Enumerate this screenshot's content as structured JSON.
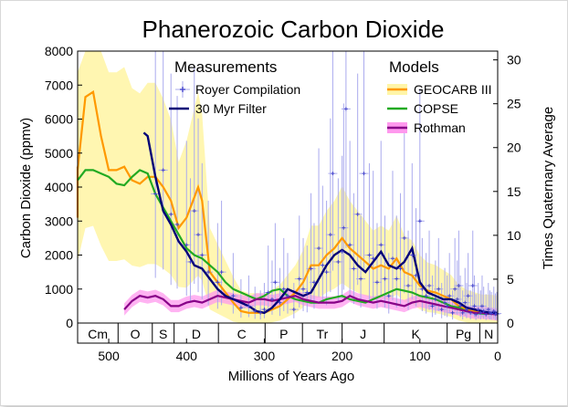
{
  "chart_data": {
    "type": "line",
    "title": "Phanerozoic Carbon Dioxide",
    "xlabel": "Millions of Years Ago",
    "ylabel": "Carbon Dioxide (ppmv)",
    "ylabel_right": "Times Quaternary Average",
    "xlim": [
      540,
      0
    ],
    "ylim": [
      0,
      8000
    ],
    "ylim_right": [
      0,
      31
    ],
    "x_ticks": [
      500,
      400,
      300,
      200,
      100,
      0
    ],
    "y_ticks": [
      0,
      1000,
      2000,
      3000,
      4000,
      5000,
      6000,
      7000,
      8000
    ],
    "y_ticks_right": [
      0,
      5,
      10,
      15,
      20,
      25,
      30
    ],
    "periods": [
      {
        "label": "Cm",
        "start": 542,
        "end": 488
      },
      {
        "label": "O",
        "start": 488,
        "end": 444
      },
      {
        "label": "S",
        "start": 444,
        "end": 416
      },
      {
        "label": "D",
        "start": 416,
        "end": 359
      },
      {
        "label": "C",
        "start": 359,
        "end": 299
      },
      {
        "label": "P",
        "start": 299,
        "end": 251
      },
      {
        "label": "Tr",
        "start": 251,
        "end": 200
      },
      {
        "label": "J",
        "start": 200,
        "end": 146
      },
      {
        "label": "K",
        "start": 146,
        "end": 65
      },
      {
        "label": "Pg",
        "start": 65,
        "end": 23
      },
      {
        "label": "N",
        "start": 23,
        "end": 0
      }
    ],
    "legend": {
      "measurements_title": "Measurements",
      "models_title": "Models",
      "measurements": [
        "Royer Compilation",
        "30 Myr Filter"
      ],
      "models": [
        "GEOCARB III",
        "COPSE",
        "Rothman"
      ]
    },
    "colors": {
      "geocarb": "#ff9900",
      "geocarb_band": "#fff5a8",
      "copse": "#22aa22",
      "rothman": "#880088",
      "rothman_band": "#ff99ee",
      "royer": "#4444cc",
      "royer_error": "#aaaaee",
      "filter": "#000077"
    },
    "series": [
      {
        "name": "GEOCARB III",
        "x": [
          570,
          550,
          540,
          530,
          520,
          510,
          500,
          490,
          480,
          470,
          460,
          450,
          440,
          430,
          420,
          410,
          400,
          390,
          385,
          380,
          370,
          360,
          350,
          340,
          330,
          320,
          310,
          300,
          290,
          280,
          270,
          260,
          250,
          240,
          230,
          220,
          210,
          200,
          190,
          180,
          170,
          160,
          150,
          140,
          130,
          120,
          110,
          100,
          90,
          80,
          70,
          60,
          50,
          40,
          30,
          20,
          10,
          0
        ],
        "y": [
          3100,
          4600,
          4500,
          6650,
          6800,
          5500,
          4500,
          4500,
          4600,
          4200,
          4100,
          4300,
          4300,
          4000,
          3600,
          2800,
          3100,
          3700,
          4000,
          3600,
          1500,
          1200,
          900,
          600,
          350,
          300,
          300,
          300,
          400,
          500,
          700,
          900,
          1200,
          1700,
          1700,
          2000,
          2200,
          2500,
          2200,
          2000,
          1800,
          1600,
          1700,
          1600,
          1900,
          1500,
          1400,
          1100,
          950,
          900,
          800,
          700,
          500,
          400,
          350,
          300,
          300,
          280
        ]
      },
      {
        "name": "COPSE",
        "x": [
          550,
          530,
          520,
          510,
          500,
          490,
          480,
          470,
          460,
          450,
          440,
          430,
          420,
          410,
          400,
          390,
          380,
          370,
          360,
          350,
          340,
          330,
          320,
          310,
          300,
          290,
          280,
          270,
          260,
          250,
          240,
          230,
          220,
          210,
          200,
          190,
          180,
          170,
          160,
          150,
          140,
          130,
          120,
          110,
          100,
          90,
          80,
          70,
          60,
          50,
          40,
          30,
          20,
          10,
          0
        ],
        "y": [
          4200,
          4500,
          4500,
          4400,
          4300,
          4100,
          4050,
          4300,
          4500,
          4400,
          3800,
          3400,
          3000,
          2600,
          2200,
          2000,
          1900,
          1700,
          1500,
          1200,
          1000,
          900,
          800,
          700,
          800,
          950,
          1000,
          800,
          700,
          650,
          600,
          600,
          700,
          750,
          800,
          700,
          650,
          600,
          700,
          800,
          900,
          1000,
          950,
          900,
          800,
          750,
          700,
          600,
          500,
          450,
          350,
          300,
          280,
          270,
          260
        ]
      },
      {
        "name": "Rothman",
        "x": [
          480,
          470,
          460,
          450,
          440,
          430,
          420,
          410,
          400,
          390,
          380,
          370,
          360,
          350,
          340,
          330,
          320,
          310,
          300,
          290,
          280,
          270,
          260,
          250,
          240,
          230,
          220,
          210,
          200,
          190,
          180,
          170,
          160,
          150,
          140,
          130,
          120,
          110,
          100,
          90,
          80,
          70,
          60,
          50,
          40,
          30,
          20,
          10,
          0
        ],
        "y": [
          400,
          650,
          800,
          750,
          800,
          700,
          500,
          500,
          600,
          650,
          600,
          700,
          800,
          750,
          700,
          650,
          600,
          700,
          700,
          650,
          700,
          750,
          800,
          700,
          650,
          600,
          600,
          600,
          650,
          800,
          700,
          650,
          600,
          650,
          600,
          550,
          500,
          600,
          650,
          600,
          550,
          500,
          450,
          400,
          350,
          300,
          300,
          280,
          250
        ]
      },
      {
        "name": "30 Myr Filter",
        "x": [
          455,
          450,
          440,
          430,
          420,
          410,
          400,
          390,
          380,
          370,
          360,
          350,
          340,
          330,
          320,
          310,
          300,
          290,
          280,
          270,
          260,
          250,
          240,
          230,
          220,
          210,
          200,
          190,
          180,
          170,
          160,
          150,
          140,
          130,
          120,
          110,
          100,
          90,
          80,
          70,
          60,
          50,
          40,
          30,
          20,
          10,
          0
        ],
        "y": [
          5600,
          5500,
          4300,
          3300,
          2900,
          2400,
          2100,
          1700,
          1600,
          1300,
          1000,
          800,
          700,
          600,
          500,
          350,
          300,
          450,
          700,
          1000,
          900,
          800,
          900,
          1300,
          1700,
          2000,
          2150,
          2000,
          1700,
          1500,
          1800,
          2100,
          1700,
          1600,
          1800,
          2200,
          1200,
          900,
          800,
          700,
          700,
          600,
          450,
          400,
          350,
          300,
          300
        ]
      }
    ],
    "royer_points": [
      {
        "x": 440,
        "y": 3800
      },
      {
        "x": 430,
        "y": 4500
      },
      {
        "x": 420,
        "y": 3200
      },
      {
        "x": 412,
        "y": 2900
      },
      {
        "x": 400,
        "y": 2300
      },
      {
        "x": 395,
        "y": 1800
      },
      {
        "x": 390,
        "y": 3300
      },
      {
        "x": 385,
        "y": 2600
      },
      {
        "x": 380,
        "y": 2000
      },
      {
        "x": 372,
        "y": 1500
      },
      {
        "x": 360,
        "y": 1200
      },
      {
        "x": 355,
        "y": 1500
      },
      {
        "x": 340,
        "y": 800
      },
      {
        "x": 330,
        "y": 450
      },
      {
        "x": 320,
        "y": 500
      },
      {
        "x": 312,
        "y": 350
      },
      {
        "x": 305,
        "y": 300
      },
      {
        "x": 300,
        "y": 400
      },
      {
        "x": 295,
        "y": 900
      },
      {
        "x": 290,
        "y": 700
      },
      {
        "x": 286,
        "y": 1200
      },
      {
        "x": 280,
        "y": 600
      },
      {
        "x": 275,
        "y": 1000
      },
      {
        "x": 270,
        "y": 800
      },
      {
        "x": 262,
        "y": 400
      },
      {
        "x": 255,
        "y": 1300
      },
      {
        "x": 250,
        "y": 1000
      },
      {
        "x": 245,
        "y": 900
      },
      {
        "x": 240,
        "y": 1600
      },
      {
        "x": 236,
        "y": 1200
      },
      {
        "x": 230,
        "y": 2200
      },
      {
        "x": 225,
        "y": 1700
      },
      {
        "x": 220,
        "y": 1500
      },
      {
        "x": 215,
        "y": 2600
      },
      {
        "x": 212,
        "y": 4400
      },
      {
        "x": 205,
        "y": 1800
      },
      {
        "x": 200,
        "y": 2100
      },
      {
        "x": 198,
        "y": 2800
      },
      {
        "x": 195,
        "y": 6300
      },
      {
        "x": 190,
        "y": 2300
      },
      {
        "x": 185,
        "y": 1600
      },
      {
        "x": 180,
        "y": 3200
      },
      {
        "x": 176,
        "y": 1300
      },
      {
        "x": 172,
        "y": 4400
      },
      {
        "x": 165,
        "y": 2000
      },
      {
        "x": 160,
        "y": 1900
      },
      {
        "x": 155,
        "y": 1200
      },
      {
        "x": 150,
        "y": 2300
      },
      {
        "x": 145,
        "y": 1300
      },
      {
        "x": 140,
        "y": 800
      },
      {
        "x": 135,
        "y": 1900
      },
      {
        "x": 130,
        "y": 1300
      },
      {
        "x": 125,
        "y": 1600
      },
      {
        "x": 120,
        "y": 2500
      },
      {
        "x": 115,
        "y": 1100
      },
      {
        "x": 110,
        "y": 2000
      },
      {
        "x": 105,
        "y": 1400
      },
      {
        "x": 100,
        "y": 3000
      },
      {
        "x": 97,
        "y": 1000
      },
      {
        "x": 92,
        "y": 800
      },
      {
        "x": 88,
        "y": 1100
      },
      {
        "x": 84,
        "y": 500
      },
      {
        "x": 80,
        "y": 700
      },
      {
        "x": 76,
        "y": 1000
      },
      {
        "x": 72,
        "y": 400
      },
      {
        "x": 68,
        "y": 600
      },
      {
        "x": 65,
        "y": 500
      },
      {
        "x": 62,
        "y": 800
      },
      {
        "x": 58,
        "y": 300
      },
      {
        "x": 55,
        "y": 1000
      },
      {
        "x": 52,
        "y": 700
      },
      {
        "x": 50,
        "y": 1100
      },
      {
        "x": 48,
        "y": 500
      },
      {
        "x": 45,
        "y": 300
      },
      {
        "x": 42,
        "y": 600
      },
      {
        "x": 40,
        "y": 400
      },
      {
        "x": 38,
        "y": 800
      },
      {
        "x": 35,
        "y": 300
      },
      {
        "x": 32,
        "y": 1100
      },
      {
        "x": 30,
        "y": 500
      },
      {
        "x": 28,
        "y": 250
      },
      {
        "x": 25,
        "y": 400
      },
      {
        "x": 22,
        "y": 300
      },
      {
        "x": 20,
        "y": 500
      },
      {
        "x": 18,
        "y": 350
      },
      {
        "x": 15,
        "y": 250
      },
      {
        "x": 12,
        "y": 400
      },
      {
        "x": 10,
        "y": 300
      },
      {
        "x": 8,
        "y": 280
      },
      {
        "x": 5,
        "y": 350
      },
      {
        "x": 3,
        "y": 260
      },
      {
        "x": 1,
        "y": 280
      }
    ]
  }
}
